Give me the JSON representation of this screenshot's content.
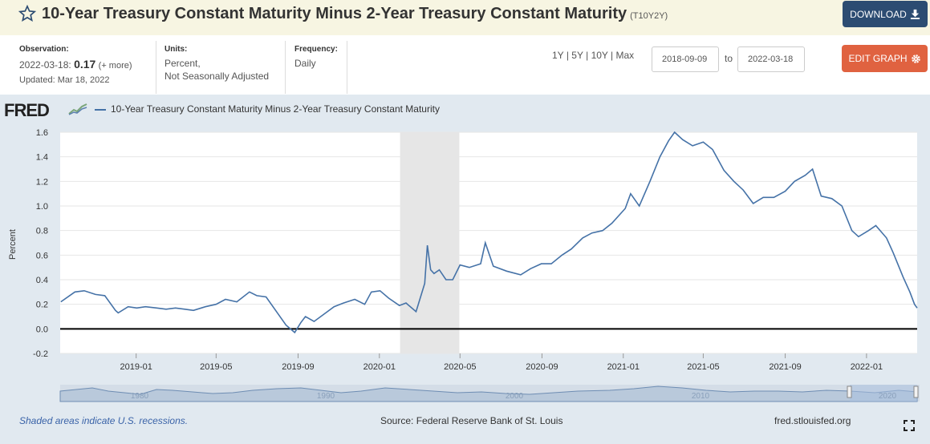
{
  "header": {
    "title": "10-Year Treasury Constant Maturity Minus 2-Year Treasury Constant Maturity",
    "series_id": "(T10Y2Y)",
    "download_label": "DOWNLOAD",
    "star_icon": "star-icon",
    "download_icon": "download-icon"
  },
  "meta": {
    "observation_label": "Observation:",
    "observation_date": "2022-03-18:",
    "observation_value": "0.17",
    "observation_more": "(+ more)",
    "updated": "Updated: Mar 18, 2022",
    "units_label": "Units:",
    "units_line1": "Percent,",
    "units_line2": "Not Seasonally Adjusted",
    "frequency_label": "Frequency:",
    "frequency_value": "Daily"
  },
  "controls": {
    "range_1y": "1Y",
    "range_5y": "5Y",
    "range_10y": "10Y",
    "range_max": "Max",
    "sep": "|",
    "start_date": "2018-09-09",
    "to_label": "to",
    "end_date": "2022-03-18",
    "edit_label": "EDIT GRAPH",
    "edit_icon": "gear-icon"
  },
  "graph": {
    "logo_text": "FRED",
    "logo_icon": "chart-logo-icon",
    "legend_label": "10-Year Treasury Constant Maturity Minus 2-Year Treasury Constant Maturity",
    "footer_note": "Shaded areas indicate U.S. recessions.",
    "footer_source": "Source: Federal Reserve Bank of St. Louis",
    "footer_site": "fred.stlouisfed.org",
    "fullscreen_icon": "fullscreen-icon"
  },
  "chart_data": {
    "type": "line",
    "ylabel": "Percent",
    "ylim": [
      -0.2,
      1.6
    ],
    "yticks": [
      "1.6",
      "1.4",
      "1.2",
      "1.0",
      "0.8",
      "0.6",
      "0.4",
      "0.2",
      "0.0",
      "-0.2"
    ],
    "xlim": [
      "2018-09-09",
      "2022-03-18"
    ],
    "xticks": [
      "2019-01",
      "2019-05",
      "2019-09",
      "2020-01",
      "2020-05",
      "2020-09",
      "2021-01",
      "2021-05",
      "2021-09",
      "2022-01"
    ],
    "recession": [
      "2020-02",
      "2020-04"
    ],
    "navigator_labels": [
      "1980",
      "1990",
      "2000",
      "2010",
      "2020"
    ],
    "series": [
      {
        "color": "#4572a7",
        "x": [
          "2018-09-10",
          "2018-10-01",
          "2018-10-15",
          "2018-11-01",
          "2018-11-15",
          "2018-12-01",
          "2018-12-05",
          "2018-12-20",
          "2019-01-02",
          "2019-01-15",
          "2019-02-01",
          "2019-02-15",
          "2019-03-01",
          "2019-03-15",
          "2019-03-28",
          "2019-04-15",
          "2019-05-01",
          "2019-05-15",
          "2019-06-01",
          "2019-06-20",
          "2019-07-01",
          "2019-07-15",
          "2019-08-01",
          "2019-08-14",
          "2019-08-27",
          "2019-09-05",
          "2019-09-12",
          "2019-09-25",
          "2019-10-10",
          "2019-10-25",
          "2019-11-08",
          "2019-11-25",
          "2019-12-10",
          "2019-12-20",
          "2020-01-02",
          "2020-01-15",
          "2020-01-31",
          "2020-02-10",
          "2020-02-25",
          "2020-03-09",
          "2020-03-13",
          "2020-03-18",
          "2020-03-23",
          "2020-03-31",
          "2020-04-10",
          "2020-04-20",
          "2020-05-01",
          "2020-05-15",
          "2020-06-01",
          "2020-06-08",
          "2020-06-20",
          "2020-07-10",
          "2020-07-31",
          "2020-08-15",
          "2020-08-31",
          "2020-09-15",
          "2020-10-01",
          "2020-10-15",
          "2020-11-01",
          "2020-11-15",
          "2020-12-01",
          "2020-12-15",
          "2021-01-04",
          "2021-01-12",
          "2021-01-25",
          "2021-02-10",
          "2021-02-25",
          "2021-03-10",
          "2021-03-19",
          "2021-03-31",
          "2021-04-15",
          "2021-05-01",
          "2021-05-15",
          "2021-06-01",
          "2021-06-16",
          "2021-06-30",
          "2021-07-15",
          "2021-07-30",
          "2021-08-15",
          "2021-09-01",
          "2021-09-15",
          "2021-10-01",
          "2021-10-12",
          "2021-10-25",
          "2021-11-10",
          "2021-11-25",
          "2021-12-10",
          "2021-12-20",
          "2022-01-04",
          "2022-01-15",
          "2022-01-31",
          "2022-02-10",
          "2022-02-25",
          "2022-03-07",
          "2022-03-14",
          "2022-03-18"
        ],
        "values": [
          0.22,
          0.3,
          0.31,
          0.28,
          0.27,
          0.15,
          0.13,
          0.18,
          0.17,
          0.18,
          0.17,
          0.16,
          0.17,
          0.16,
          0.15,
          0.18,
          0.2,
          0.24,
          0.22,
          0.3,
          0.27,
          0.26,
          0.13,
          0.03,
          -0.03,
          0.05,
          0.1,
          0.06,
          0.12,
          0.18,
          0.21,
          0.24,
          0.2,
          0.3,
          0.31,
          0.25,
          0.19,
          0.21,
          0.14,
          0.37,
          0.68,
          0.48,
          0.45,
          0.48,
          0.4,
          0.4,
          0.52,
          0.5,
          0.53,
          0.7,
          0.51,
          0.47,
          0.44,
          0.49,
          0.53,
          0.53,
          0.6,
          0.65,
          0.74,
          0.78,
          0.8,
          0.86,
          0.98,
          1.1,
          1.0,
          1.2,
          1.4,
          1.53,
          1.6,
          1.54,
          1.49,
          1.52,
          1.46,
          1.29,
          1.2,
          1.13,
          1.02,
          1.07,
          1.07,
          1.12,
          1.2,
          1.25,
          1.3,
          1.08,
          1.06,
          1.0,
          0.8,
          0.75,
          0.8,
          0.84,
          0.74,
          0.62,
          0.42,
          0.3,
          0.2,
          0.17
        ]
      }
    ]
  }
}
